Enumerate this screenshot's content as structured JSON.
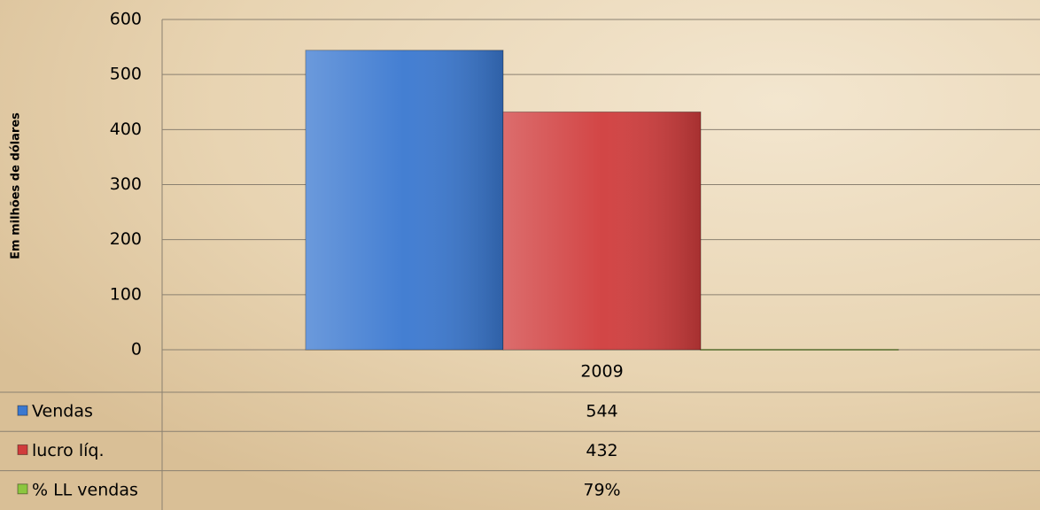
{
  "chart_data": {
    "type": "bar",
    "y_label": "Em milhões de dólares",
    "categories": [
      "2009"
    ],
    "series": [
      {
        "name": "Vendas",
        "color": "#3a78d0",
        "values": [
          544
        ]
      },
      {
        "name": "lucro líq.",
        "color": "#d03c3c",
        "values": [
          432
        ]
      },
      {
        "name": "% LL vendas",
        "color": "#8cc63f",
        "values": [
          0.79
        ],
        "value_labels": [
          "79%"
        ]
      }
    ],
    "ylim": [
      0,
      600
    ],
    "yticks": [
      0,
      100,
      200,
      300,
      400,
      500,
      600
    ],
    "grid": true
  }
}
